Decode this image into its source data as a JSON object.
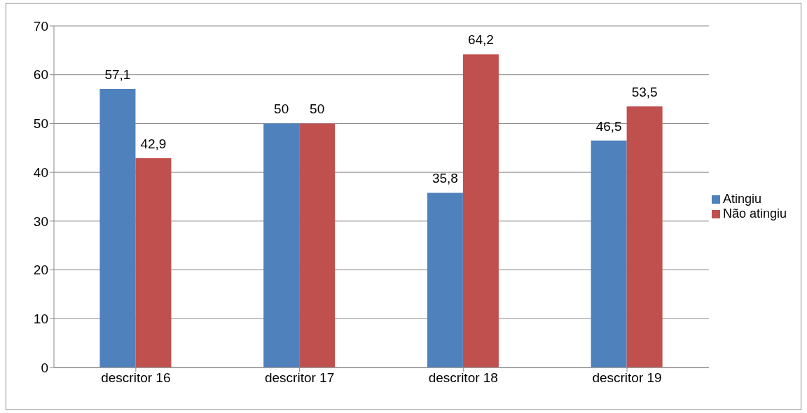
{
  "chart_data": {
    "type": "bar",
    "categories": [
      "descritor 16",
      "descritor 17",
      "descritor 18",
      "descritor 19"
    ],
    "series": [
      {
        "name": "Atingiu",
        "color": "#4f81bd",
        "values": [
          57.1,
          50,
          35.8,
          46.5
        ],
        "value_labels": [
          "57,1",
          "50",
          "35,8",
          "46,5"
        ]
      },
      {
        "name": "Não atingiu",
        "color": "#c0504d",
        "values": [
          42.9,
          50,
          64.2,
          53.5
        ],
        "value_labels": [
          "42,9",
          "50",
          "64,2",
          "53,5"
        ]
      }
    ],
    "ylim": [
      0,
      70
    ],
    "yticks": [
      0,
      10,
      20,
      30,
      40,
      50,
      60,
      70
    ],
    "grid": "y",
    "legend": "right"
  }
}
